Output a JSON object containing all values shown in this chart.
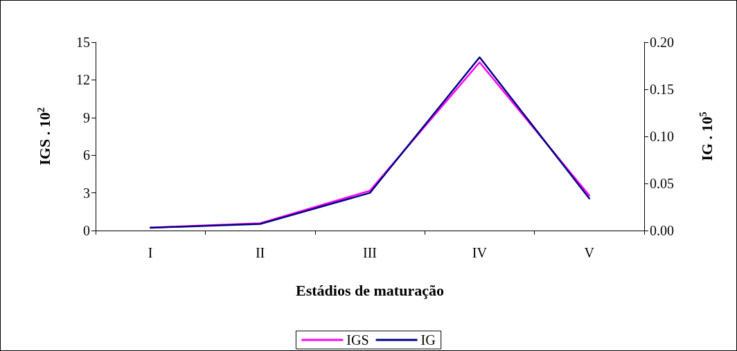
{
  "chart_data": {
    "type": "line",
    "xlabel": "Estádios de maturação",
    "ylabel": "IGS . 10$^{2}$",
    "y2label": "IG . 10$^{5}$",
    "categories": [
      "I",
      "II",
      "III",
      "IV",
      "V"
    ],
    "series": [
      {
        "name": "IGS",
        "color": "#ff00ff",
        "values": [
          0.23,
          0.58,
          3.17,
          13.4,
          2.79
        ]
      },
      {
        "name": "IG",
        "color": "#000080",
        "axis": "y2",
        "values": [
          0.003,
          0.007,
          0.04,
          0.184,
          0.034
        ]
      }
    ],
    "ylim": [
      0,
      15
    ],
    "yticks": [
      0,
      3,
      6,
      9,
      12,
      15
    ],
    "y2lim": [
      0,
      0.2
    ],
    "y2ticks": [
      {
        "value": 0,
        "label": "0.00"
      },
      {
        "value": 0.05,
        "label": "0.05"
      },
      {
        "value": 0.1,
        "label": "0.10"
      },
      {
        "value": 0.15,
        "label": "0.15"
      },
      {
        "value": 0.2,
        "label": "0.20"
      }
    ],
    "grid": false,
    "legend": "bottom",
    "marker": "none",
    "line_style": "solid"
  }
}
